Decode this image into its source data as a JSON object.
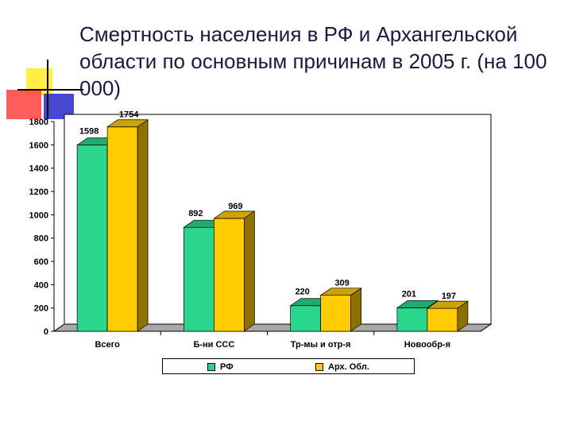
{
  "title": "Смертность населения в РФ и Архангельской области по основным причинам в 2005 г. (на 100 000)",
  "colors": {
    "series_1": "#2bd68c",
    "series_2": "#ffcc00",
    "deco_yellow": "#ffee44",
    "deco_red": "#ff3333",
    "deco_blue": "#3333cc"
  },
  "chart_data": {
    "type": "bar",
    "categories": [
      "Всего",
      "Б-ни ССС",
      "Тр-мы и отр-я",
      "Новообр-я"
    ],
    "series": [
      {
        "name": "РФ",
        "values": [
          1598,
          892,
          220,
          201
        ]
      },
      {
        "name": "Арх. Обл.",
        "values": [
          1754,
          969,
          309,
          197
        ]
      }
    ],
    "yticks": [
      "0",
      "200",
      "400",
      "600",
      "800",
      "1000",
      "1200",
      "1400",
      "1600",
      "1800"
    ],
    "ylim": [
      0,
      1800
    ],
    "grid": false,
    "legend_position": "bottom"
  }
}
